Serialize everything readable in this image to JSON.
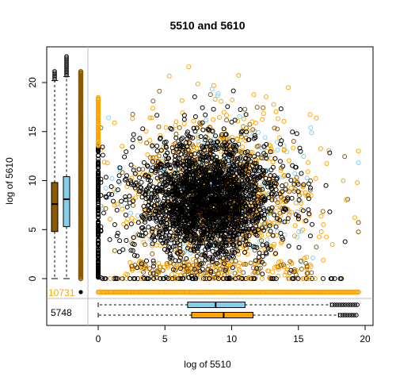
{
  "chart_data": {
    "type": "scatter",
    "title": "5510  and 5610",
    "xlabel": "log of 5510",
    "ylabel": "log of 5610",
    "xlim": [
      -0.5,
      20.5
    ],
    "ylim": [
      -0.5,
      23
    ],
    "x_ticks": [
      0,
      5,
      10,
      15,
      20
    ],
    "y_ticks": [
      0,
      5,
      10,
      15,
      20
    ],
    "grid": false,
    "legend": "none",
    "colors": {
      "black_series": "#000000",
      "orange_series": "#FFA500",
      "skyblue_series": "#87CEEB",
      "brown_series": "#8B5A00",
      "frame": "#000000",
      "divider": "#BEBEBE"
    },
    "scatter_summary": {
      "cluster_center": [
        8.5,
        8.5
      ],
      "x_range": [
        0,
        19.5
      ],
      "y_range": [
        0,
        22.5
      ]
    },
    "zero_x_count": "5748",
    "zero_y_count": "10731",
    "box_y_left_brown": {
      "min": 0,
      "q1": 4.8,
      "median": 7.6,
      "q3": 9.8,
      "whisker_high": 20.2,
      "outliers_to": 21.3
    },
    "box_y_left_skyblue": {
      "min": 0,
      "q1": 5.3,
      "median": 8.1,
      "q3": 10.4,
      "whisker_high": 20.6,
      "outliers_to": 22.8
    },
    "box_x_bottom_skyblue": {
      "min": 0,
      "q1": 6.7,
      "median": 8.8,
      "q3": 11.0,
      "whisker_high": 17.4,
      "outliers_to": 19.5
    },
    "box_x_bottom_orange": {
      "min": 0,
      "q1": 7.0,
      "median": 9.4,
      "q3": 11.6,
      "whisker_high": 18.0,
      "outliers_to": 19.5
    }
  }
}
